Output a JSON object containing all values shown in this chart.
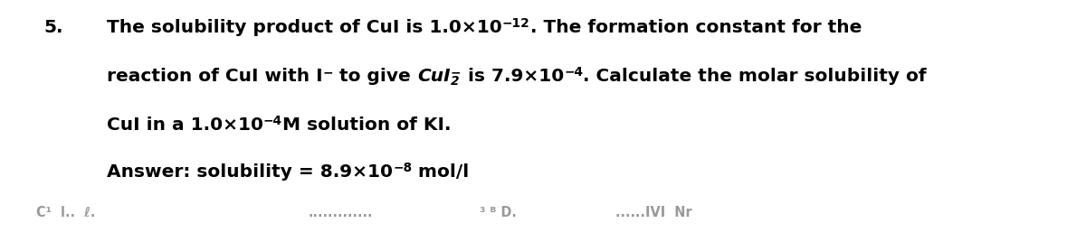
{
  "number": "5.",
  "line1_a": "The solubility product of CuI is 1.0×10",
  "line1_sup": "−12",
  "line1_b": ". The formation constant for the",
  "line2_a": "reaction of CuI with I",
  "line2_sup_minus": "−",
  "line2_b": " to give ",
  "line2_cul2": "CuI",
  "line2_sub2": "2",
  "line2_sup2": "−",
  "line2_c": " is 7.9×10",
  "line2_sup2b": "−4",
  "line2_d": ". Calculate the molar solubility of",
  "line3_a": "CuI in a 1.0×10",
  "line3_sup": "−4",
  "line3_b": "M solution of KI.",
  "line4_a": "Answer: solubility = 8.9×10",
  "line4_sup": "−8",
  "line4_b": " mol/l",
  "background_color": "#ffffff",
  "text_color": "#000000",
  "font_size": 14.5,
  "fig_width": 12.0,
  "fig_height": 2.68
}
